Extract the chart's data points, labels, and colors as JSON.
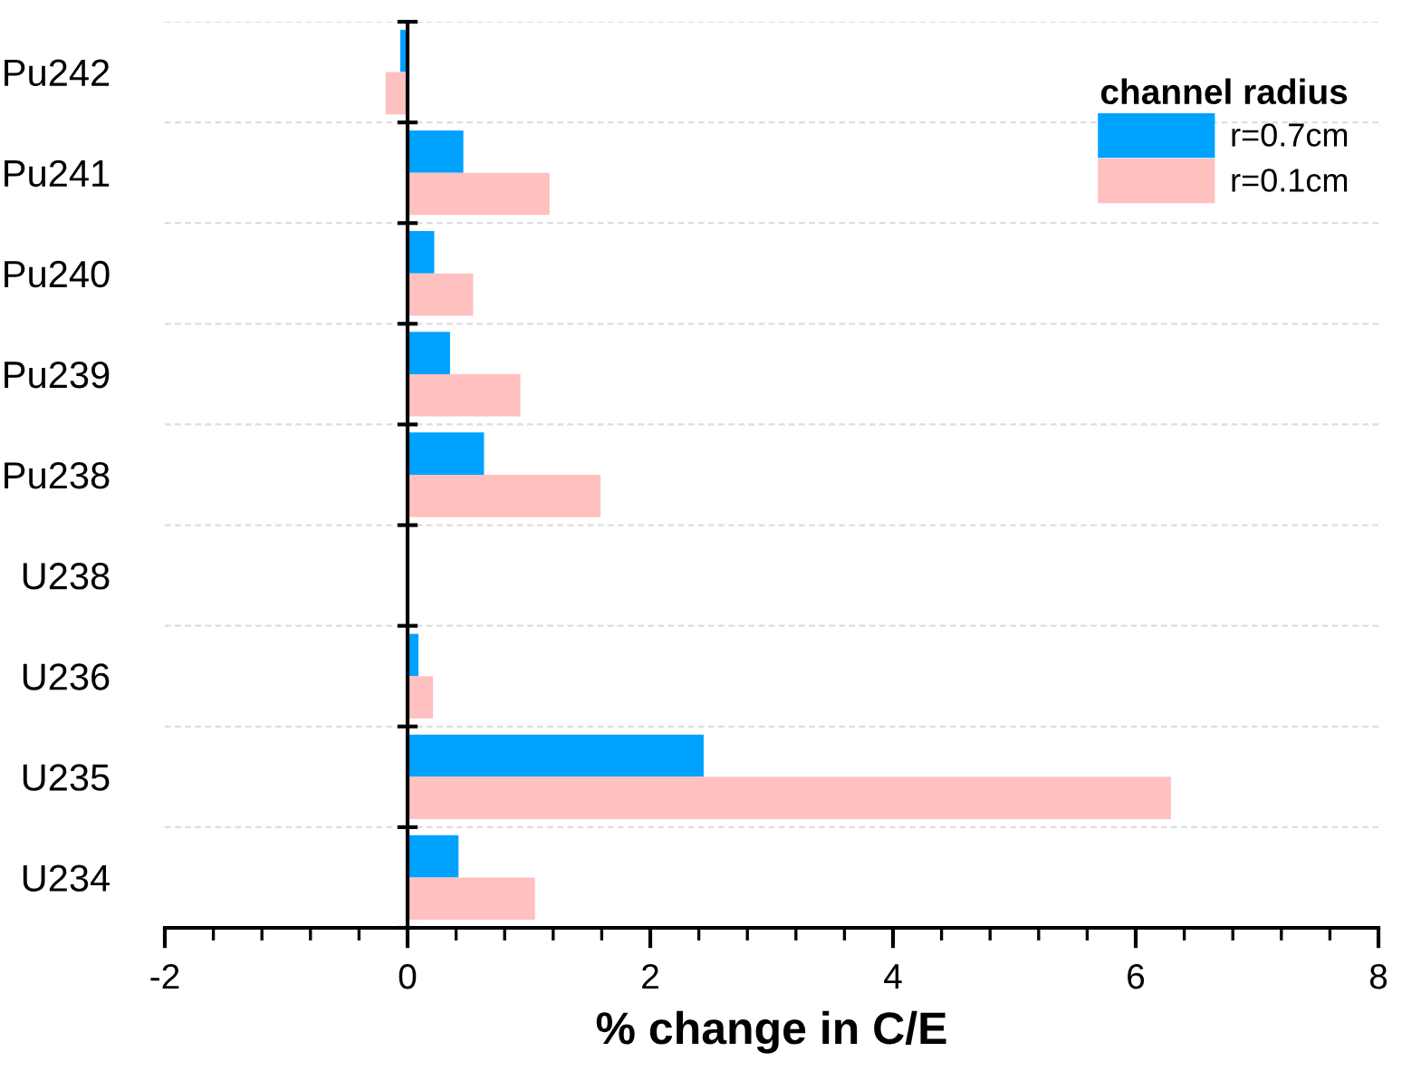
{
  "chart_data": {
    "type": "bar",
    "orientation": "horizontal",
    "xlabel": "% change in C/E",
    "legend_title": "channel radius",
    "categories": [
      "Pu242",
      "Pu241",
      "Pu240",
      "Pu239",
      "Pu238",
      "U238",
      "U236",
      "U235",
      "U234"
    ],
    "series": [
      {
        "name": "r=0.7cm",
        "color": "#00a2ff",
        "values": [
          -0.06,
          0.46,
          0.22,
          0.35,
          0.63,
          0,
          0.09,
          2.44,
          0.42
        ]
      },
      {
        "name": "r=0.1cm",
        "color": "#ffc0c0",
        "values": [
          -0.18,
          1.17,
          0.54,
          0.93,
          1.59,
          0,
          0.21,
          6.29,
          1.05
        ]
      }
    ],
    "xlim": [
      -2,
      8
    ],
    "xticks": [
      -2,
      0,
      2,
      4,
      6,
      8
    ],
    "grid": "y",
    "legend": "top right"
  }
}
